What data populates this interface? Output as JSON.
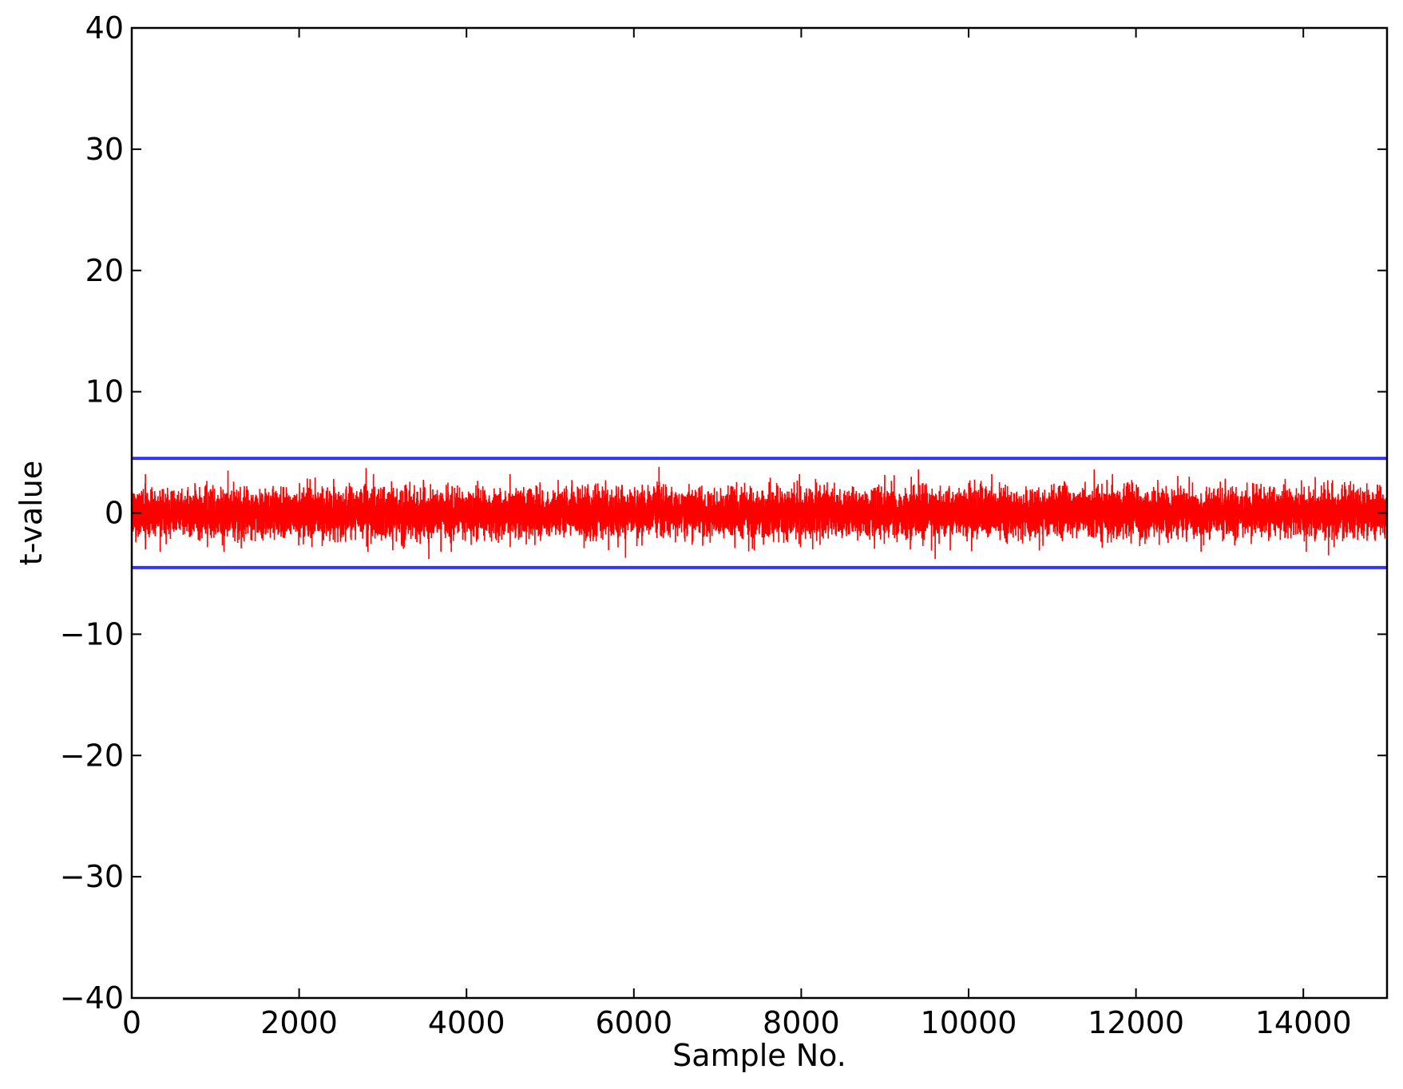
{
  "chart_data": {
    "type": "line",
    "title": "",
    "xlabel": "Sample No.",
    "ylabel": "t-value",
    "xlim": [
      0,
      15000
    ],
    "ylim": [
      -40,
      40
    ],
    "xticks": [
      0,
      2000,
      4000,
      6000,
      8000,
      10000,
      12000,
      14000
    ],
    "xtick_labels": [
      "0",
      "2000",
      "4000",
      "6000",
      "8000",
      "10000",
      "12000",
      "14000"
    ],
    "yticks": [
      -40,
      -30,
      -20,
      -10,
      0,
      10,
      20,
      30,
      40
    ],
    "ytick_labels": [
      "−40",
      "−30",
      "−20",
      "−10",
      "0",
      "10",
      "20",
      "30",
      "40"
    ],
    "grid": false,
    "series": [
      {
        "color": "#ff0000",
        "x_range": [
          0,
          15000
        ],
        "n_points": 15000,
        "approx_range": [
          -3.8,
          3.7
        ],
        "values_excerpt": [
          {
            "x": 1150,
            "y": 3.5
          },
          {
            "x": 2800,
            "y": 3.7
          },
          {
            "x": 3550,
            "y": -3.8
          },
          {
            "x": 5900,
            "y": -3.7
          },
          {
            "x": 6300,
            "y": 3.8
          },
          {
            "x": 9400,
            "y": 3.6
          },
          {
            "x": 9600,
            "y": -3.8
          },
          {
            "x": 11500,
            "y": 3.6
          },
          {
            "x": 14300,
            "y": -3.5
          }
        ]
      },
      {
        "color": "#3333ff",
        "x": [
          0,
          15000
        ],
        "values": [
          4.5,
          4.5
        ]
      },
      {
        "color": "#3333ff",
        "x": [
          0,
          15000
        ],
        "values": [
          -4.5,
          -4.5
        ]
      }
    ]
  }
}
